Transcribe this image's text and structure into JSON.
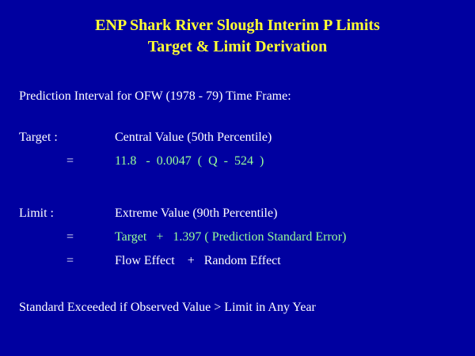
{
  "title": {
    "line1": "ENP Shark River Slough Interim P Limits",
    "line2": "Target & Limit Derivation"
  },
  "subtitle": "Prediction Interval for OFW (1978 - 79) Time Frame:",
  "target": {
    "label": "Target :",
    "description": "Central Value (50th Percentile)",
    "equals": "=",
    "formula": "11.8   -  0.0047  (  Q  -  524  )"
  },
  "limit": {
    "label": "Limit :",
    "description": "Extreme Value (90th Percentile)",
    "equals1": "=",
    "formula1": "Target   +   1.397 ( Prediction Standard Error)",
    "equals2": "=",
    "formula2": "Flow Effect    +   Random Effect"
  },
  "footer": "Standard Exceeded if Observed Value > Limit in Any Year",
  "colors": {
    "background": "#0000a0",
    "title": "#ffff33",
    "text": "#ffffff",
    "formula": "#99ff99"
  }
}
